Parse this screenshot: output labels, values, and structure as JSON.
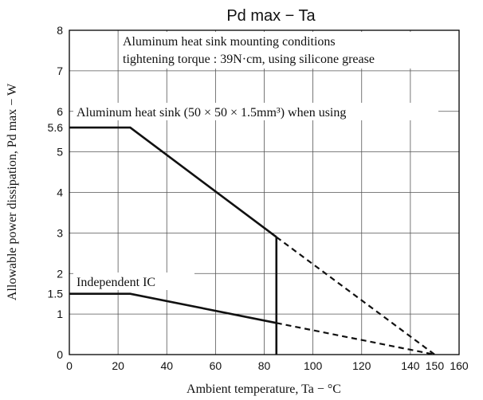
{
  "chart_data": {
    "type": "line",
    "title": "Pd max − Ta",
    "xlabel": "Ambient temperature, Ta − °C",
    "ylabel": "Allowable power dissipation, Pd max − W",
    "xlim": [
      0,
      160
    ],
    "ylim": [
      0,
      8
    ],
    "x_ticks": [
      "0",
      "20",
      "40",
      "60",
      "80",
      "100",
      "120",
      "140",
      "150",
      "160"
    ],
    "x_tick_values": [
      0,
      20,
      40,
      60,
      80,
      100,
      120,
      140,
      150,
      160
    ],
    "y_ticks": [
      "0",
      "1",
      "1.5",
      "2",
      "3",
      "4",
      "5",
      "5.6",
      "6",
      "7",
      "8"
    ],
    "y_tick_values": [
      0,
      1,
      1.5,
      2,
      3,
      4,
      5,
      5.6,
      6,
      7,
      8
    ],
    "x_grid": [
      0,
      20,
      40,
      60,
      80,
      100,
      120,
      140,
      160
    ],
    "y_grid": [
      0,
      1,
      2,
      3,
      4,
      5,
      6,
      7,
      8
    ],
    "grid": true,
    "series": [
      {
        "name": "Aluminum heat sink (50 × 50 × 1.5mm³) when using",
        "solid": [
          [
            0,
            5.6
          ],
          [
            25,
            5.6
          ],
          [
            85,
            2.9
          ]
        ],
        "dashed": [
          [
            85,
            2.9
          ],
          [
            150,
            0
          ]
        ]
      },
      {
        "name": "Independent IC",
        "solid": [
          [
            0,
            1.5
          ],
          [
            25,
            1.5
          ],
          [
            85,
            0.78
          ]
        ],
        "dashed": [
          [
            85,
            0.78
          ],
          [
            150,
            0
          ]
        ]
      }
    ],
    "vertical_line_x": 85,
    "annotations": [
      "Aluminum heat sink mounting conditions",
      "tightening torque : 39N·cm, using silicone grease"
    ]
  }
}
